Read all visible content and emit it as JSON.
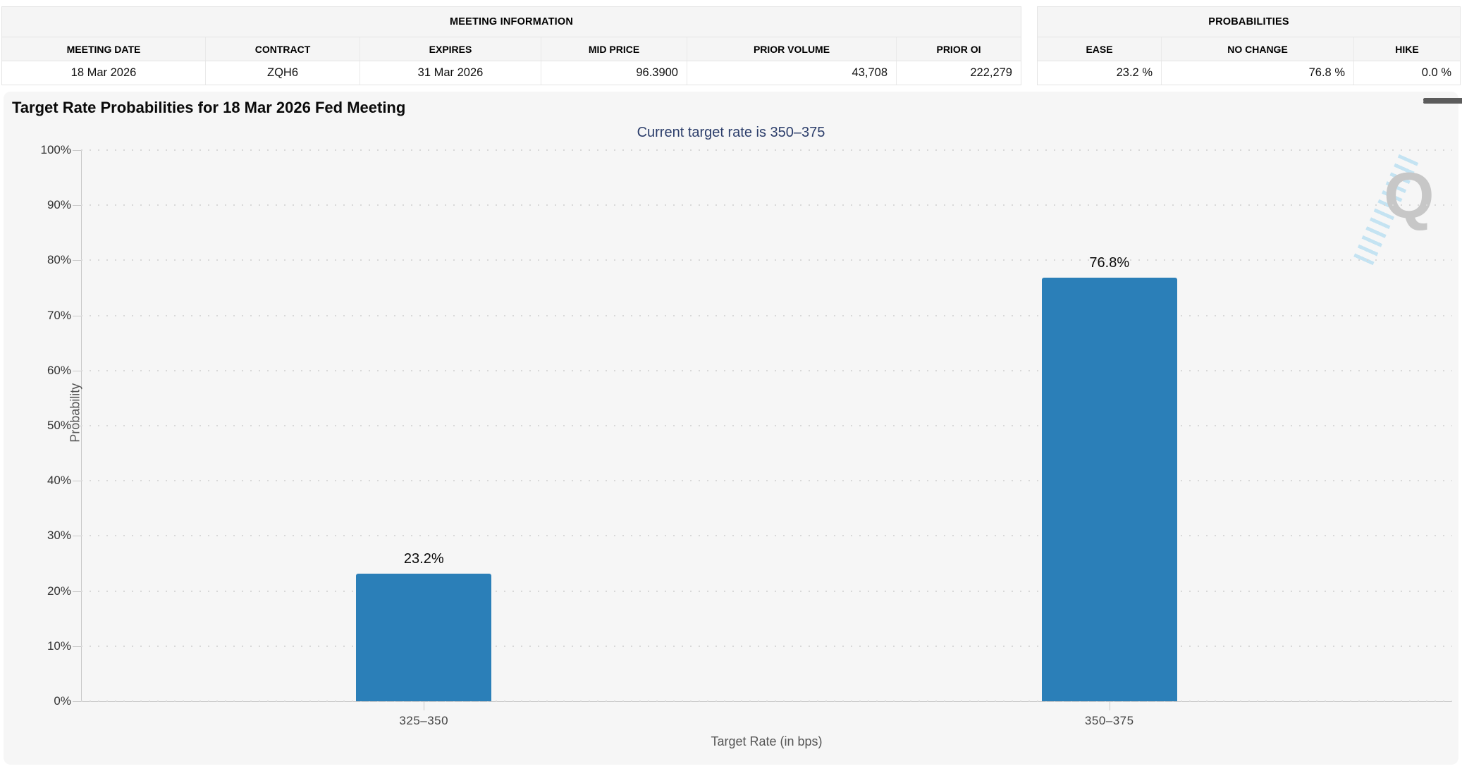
{
  "meeting_info": {
    "title": "MEETING INFORMATION",
    "columns": [
      "MEETING DATE",
      "CONTRACT",
      "EXPIRES",
      "MID PRICE",
      "PRIOR VOLUME",
      "PRIOR OI"
    ],
    "values": [
      "18 Mar 2026",
      "ZQH6",
      "31 Mar 2026",
      "96.3900",
      "43,708",
      "222,279"
    ]
  },
  "probabilities": {
    "title": "PROBABILITIES",
    "columns": [
      "EASE",
      "NO CHANGE",
      "HIKE"
    ],
    "values": [
      "23.2 %",
      "76.8 %",
      "0.0 %"
    ]
  },
  "chart": {
    "title": "Target Rate Probabilities for 18 Mar 2026 Fed Meeting",
    "subtitle": "Current target rate is 350–375",
    "menu_icon": "hamburger-menu-icon",
    "watermark_letter": "Q"
  },
  "chart_data": {
    "type": "bar",
    "categories": [
      "325–350",
      "350–375"
    ],
    "values": [
      23.2,
      76.8
    ],
    "bar_labels": [
      "23.2%",
      "76.8%"
    ],
    "title": "Target Rate Probabilities for 18 Mar 2026 Fed Meeting",
    "subtitle": "Current target rate is 350–375",
    "xlabel": "Target Rate (in bps)",
    "ylabel": "Probability",
    "ylim": [
      0,
      100
    ],
    "yticks": [
      "0%",
      "10%",
      "20%",
      "30%",
      "40%",
      "50%",
      "60%",
      "70%",
      "80%",
      "90%",
      "100%"
    ],
    "grid": "horizontal-dotted",
    "legend": "none",
    "bar_color": "#2b7fb8",
    "subtitle_color": "#2c3e6b"
  }
}
